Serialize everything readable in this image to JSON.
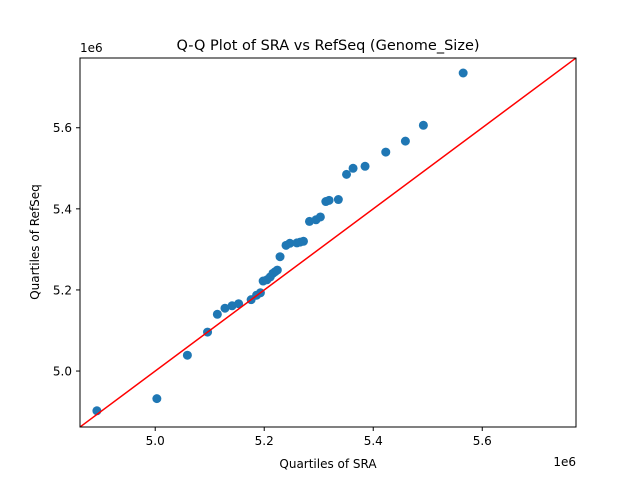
{
  "chart_data": {
    "type": "scatter",
    "title": "Q-Q Plot of SRA vs RefSeq (Genome_Size)",
    "xlabel": "Quartiles of SRA",
    "ylabel": "Quartiles of RefSeq",
    "x_offset_label": "1e6",
    "y_offset_label": "1e6",
    "xlim": [
      4.862,
      5.772
    ],
    "ylim": [
      4.862,
      5.772
    ],
    "x_ticks": [
      5.0,
      5.2,
      5.4,
      5.6
    ],
    "y_ticks": [
      5.0,
      5.2,
      5.4,
      5.6
    ],
    "x_tick_labels": [
      "5.0",
      "5.2",
      "5.4",
      "5.6"
    ],
    "y_tick_labels": [
      "5.0",
      "5.2",
      "5.4",
      "5.6"
    ],
    "grid": false,
    "point_color": "#1f77b4",
    "reference_line_color": "#ff0000",
    "reference_line": {
      "x": [
        4.862,
        5.772
      ],
      "y": [
        4.862,
        5.772
      ]
    },
    "points": [
      {
        "x": 4.893,
        "y": 4.902
      },
      {
        "x": 5.003,
        "y": 4.932
      },
      {
        "x": 5.059,
        "y": 5.039
      },
      {
        "x": 5.096,
        "y": 5.096
      },
      {
        "x": 5.114,
        "y": 5.14
      },
      {
        "x": 5.128,
        "y": 5.155
      },
      {
        "x": 5.141,
        "y": 5.161
      },
      {
        "x": 5.153,
        "y": 5.166
      },
      {
        "x": 5.176,
        "y": 5.176
      },
      {
        "x": 5.186,
        "y": 5.187
      },
      {
        "x": 5.193,
        "y": 5.193
      },
      {
        "x": 5.198,
        "y": 5.222
      },
      {
        "x": 5.205,
        "y": 5.225
      },
      {
        "x": 5.211,
        "y": 5.232
      },
      {
        "x": 5.216,
        "y": 5.241
      },
      {
        "x": 5.22,
        "y": 5.245
      },
      {
        "x": 5.224,
        "y": 5.249
      },
      {
        "x": 5.229,
        "y": 5.282
      },
      {
        "x": 5.24,
        "y": 5.31
      },
      {
        "x": 5.247,
        "y": 5.315
      },
      {
        "x": 5.26,
        "y": 5.316
      },
      {
        "x": 5.266,
        "y": 5.318
      },
      {
        "x": 5.272,
        "y": 5.32
      },
      {
        "x": 5.283,
        "y": 5.369
      },
      {
        "x": 5.295,
        "y": 5.373
      },
      {
        "x": 5.303,
        "y": 5.38
      },
      {
        "x": 5.313,
        "y": 5.418
      },
      {
        "x": 5.319,
        "y": 5.421
      },
      {
        "x": 5.336,
        "y": 5.423
      },
      {
        "x": 5.351,
        "y": 5.485
      },
      {
        "x": 5.363,
        "y": 5.5
      },
      {
        "x": 5.385,
        "y": 5.505
      },
      {
        "x": 5.423,
        "y": 5.54
      },
      {
        "x": 5.459,
        "y": 5.567
      },
      {
        "x": 5.492,
        "y": 5.606
      },
      {
        "x": 5.565,
        "y": 5.735
      }
    ]
  }
}
